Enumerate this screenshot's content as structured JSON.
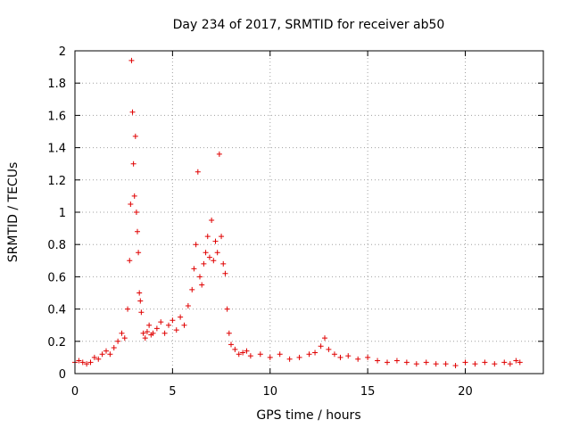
{
  "chart_data": {
    "type": "scatter",
    "title": "Day 234 of 2017, SRMTID for receiver ab50",
    "xlabel": "GPS time / hours",
    "ylabel": "SRMTID / TECUs",
    "xlim": [
      0,
      24
    ],
    "ylim": [
      0,
      2
    ],
    "xticks": [
      0,
      5,
      10,
      15,
      20
    ],
    "xtick_labels": [
      "0",
      "5",
      "10",
      "15",
      "20"
    ],
    "yticks": [
      0,
      0.2,
      0.4,
      0.6,
      0.8,
      1,
      1.2,
      1.4,
      1.6,
      1.8,
      2
    ],
    "ytick_labels": [
      "0",
      "0.2",
      "0.4",
      "0.6",
      "0.8",
      "1",
      "1.2",
      "1.4",
      "1.6",
      "1.8",
      "2"
    ],
    "grid": true,
    "marker": "plus",
    "color": "#e00000",
    "series": [
      {
        "name": "SRMTID",
        "x": [
          0.0,
          0.2,
          0.4,
          0.6,
          0.8,
          1.0,
          1.2,
          1.4,
          1.6,
          1.8,
          2.0,
          2.2,
          2.4,
          2.55,
          2.7,
          2.8,
          2.85,
          2.9,
          2.95,
          3.0,
          3.05,
          3.1,
          3.15,
          3.2,
          3.25,
          3.3,
          3.35,
          3.4,
          3.5,
          3.6,
          3.7,
          3.8,
          3.9,
          4.0,
          4.2,
          4.4,
          4.6,
          4.8,
          5.0,
          5.2,
          5.4,
          5.6,
          5.8,
          6.0,
          6.1,
          6.2,
          6.3,
          6.4,
          6.5,
          6.6,
          6.7,
          6.8,
          6.9,
          7.0,
          7.1,
          7.2,
          7.3,
          7.4,
          7.5,
          7.6,
          7.7,
          7.8,
          7.9,
          8.0,
          8.2,
          8.4,
          8.6,
          8.8,
          9.0,
          9.5,
          10.0,
          10.5,
          11.0,
          11.5,
          12.0,
          12.3,
          12.6,
          12.8,
          13.0,
          13.3,
          13.6,
          14.0,
          14.5,
          15.0,
          15.5,
          16.0,
          16.5,
          17.0,
          17.5,
          18.0,
          18.5,
          19.0,
          19.5,
          20.0,
          20.5,
          21.0,
          21.5,
          22.0,
          22.3,
          22.6,
          22.8
        ],
        "y": [
          0.07,
          0.08,
          0.07,
          0.06,
          0.07,
          0.1,
          0.09,
          0.12,
          0.14,
          0.12,
          0.16,
          0.2,
          0.25,
          0.22,
          0.4,
          0.7,
          1.05,
          1.94,
          1.62,
          1.3,
          1.1,
          1.47,
          1.0,
          0.88,
          0.75,
          0.5,
          0.45,
          0.38,
          0.25,
          0.22,
          0.26,
          0.3,
          0.24,
          0.25,
          0.28,
          0.32,
          0.25,
          0.3,
          0.33,
          0.27,
          0.35,
          0.3,
          0.42,
          0.52,
          0.65,
          0.8,
          1.25,
          0.6,
          0.55,
          0.68,
          0.75,
          0.85,
          0.72,
          0.95,
          0.7,
          0.82,
          0.75,
          1.36,
          0.85,
          0.68,
          0.62,
          0.4,
          0.25,
          0.18,
          0.15,
          0.12,
          0.13,
          0.14,
          0.11,
          0.12,
          0.1,
          0.12,
          0.09,
          0.1,
          0.12,
          0.13,
          0.17,
          0.22,
          0.15,
          0.12,
          0.1,
          0.11,
          0.09,
          0.1,
          0.08,
          0.07,
          0.08,
          0.07,
          0.06,
          0.07,
          0.06,
          0.06,
          0.05,
          0.07,
          0.06,
          0.07,
          0.06,
          0.07,
          0.06,
          0.08,
          0.07
        ]
      }
    ]
  }
}
